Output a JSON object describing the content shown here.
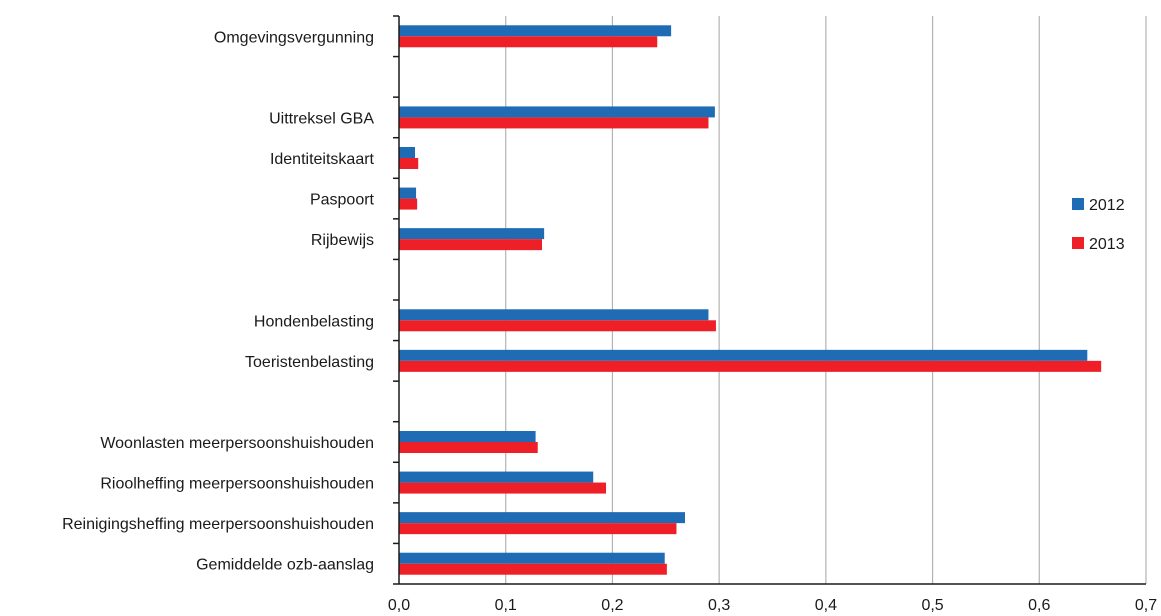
{
  "chart_data": {
    "type": "bar",
    "orientation": "horizontal",
    "categories": [
      "Omgevingsvergunning",
      "",
      "Uittreksel GBA",
      "Identiteitskaart",
      "Paspoort",
      "Rijbewijs",
      "",
      "Hondenbelasting",
      "Toeristenbelasting",
      "",
      "Woonlasten meerpersoonshuishouden",
      "Rioolheffing meerpersoonshuishouden",
      "Reinigingsheffing meerpersoonshuishouden",
      "Gemiddelde ozb-aanslag"
    ],
    "series": [
      {
        "name": "2012",
        "color": "#1f6cb4",
        "values": [
          0.255,
          null,
          0.296,
          0.015,
          0.016,
          0.136,
          null,
          0.29,
          0.645,
          null,
          0.128,
          0.182,
          0.268,
          0.249
        ]
      },
      {
        "name": "2013",
        "color": "#ee1f26",
        "values": [
          0.242,
          null,
          0.29,
          0.018,
          0.017,
          0.134,
          null,
          0.297,
          0.658,
          null,
          0.13,
          0.194,
          0.26,
          0.251
        ]
      }
    ],
    "xlim": [
      0,
      0.7
    ],
    "xticks": [
      "0,0",
      "0,1",
      "0,2",
      "0,3",
      "0,4",
      "0,5",
      "0,6",
      "0,7"
    ],
    "grid": "vertical",
    "legend": "right"
  }
}
